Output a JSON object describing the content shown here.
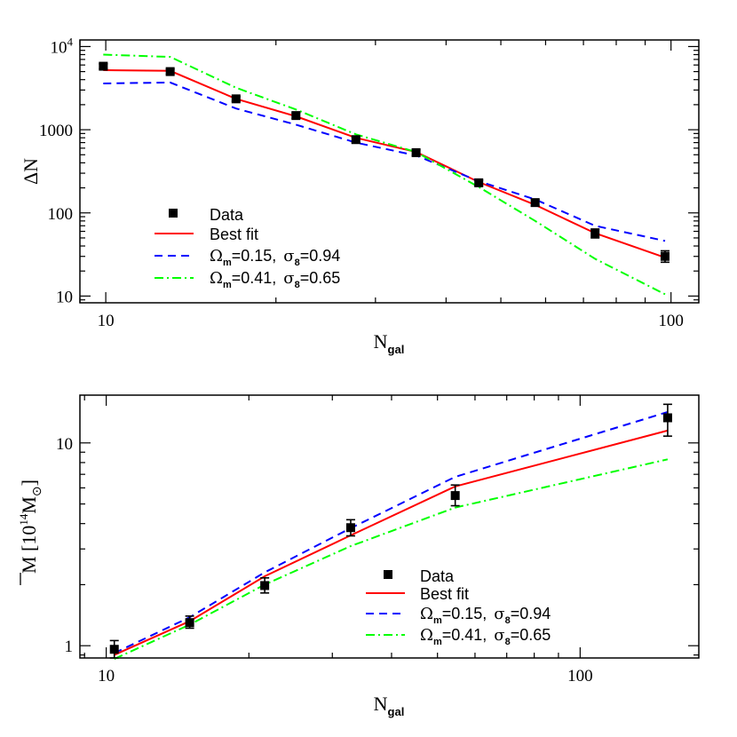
{
  "chart_data": [
    {
      "type": "line",
      "xscale": "log",
      "yscale": "log",
      "xlim": [
        9.0,
        112
      ],
      "ylim": [
        8.3,
        12000
      ],
      "xlabel": "N",
      "xlabel_sub": "gal",
      "ylabel": "ΔN",
      "xticks": [
        {
          "value": 10,
          "label": "10"
        },
        {
          "value": 100,
          "label": "100"
        }
      ],
      "yticks": [
        {
          "value": 10,
          "label": "10"
        },
        {
          "value": 100,
          "label": "100"
        },
        {
          "value": 1000,
          "label": "1000"
        },
        {
          "value": 10000,
          "label": "10",
          "sup": "4"
        }
      ],
      "grid": false,
      "legend_position": "bottom-left",
      "data": {
        "name": "Data",
        "color": "#000000",
        "points": [
          {
            "x": 9.9,
            "y": 5800,
            "ylo": 5400,
            "yhi": 6200
          },
          {
            "x": 13.0,
            "y": 5000,
            "ylo": 4650,
            "yhi": 5350
          },
          {
            "x": 17.0,
            "y": 2350,
            "ylo": 2200,
            "yhi": 2500
          },
          {
            "x": 21.7,
            "y": 1480,
            "ylo": 1370,
            "yhi": 1590
          },
          {
            "x": 27.7,
            "y": 760,
            "ylo": 700,
            "yhi": 820
          },
          {
            "x": 35.4,
            "y": 530,
            "ylo": 490,
            "yhi": 570
          },
          {
            "x": 45.7,
            "y": 230,
            "ylo": 212,
            "yhi": 248
          },
          {
            "x": 57.5,
            "y": 133,
            "ylo": 121,
            "yhi": 145
          },
          {
            "x": 73.4,
            "y": 57,
            "ylo": 50,
            "yhi": 64
          },
          {
            "x": 97.6,
            "y": 30,
            "ylo": 25.5,
            "yhi": 35
          }
        ]
      },
      "series": [
        {
          "name": "Best fit",
          "color": "#ff0000",
          "dash": "solid",
          "x": [
            9.9,
            13.0,
            17.0,
            21.7,
            27.7,
            35.4,
            45.7,
            57.5,
            73.4,
            97.6
          ],
          "y": [
            5200,
            5100,
            2350,
            1450,
            800,
            540,
            235,
            125,
            57,
            29
          ]
        },
        {
          "name": "Ω_m=0.15, σ_8=0.94",
          "color": "#0000ff",
          "dash": "dashed",
          "x": [
            9.9,
            13.0,
            17.0,
            21.7,
            27.7,
            35.4,
            45.7,
            57.5,
            73.4,
            97.6
          ],
          "y": [
            3600,
            3700,
            1800,
            1150,
            700,
            490,
            240,
            145,
            70,
            46
          ]
        },
        {
          "name": "Ω_m=0.41, σ_8=0.65",
          "color": "#00ff00",
          "dash": "dashdot",
          "x": [
            9.9,
            13.0,
            17.0,
            21.7,
            27.7,
            35.4,
            45.7,
            57.5,
            73.4,
            97.6
          ],
          "y": [
            8000,
            7500,
            3200,
            1750,
            880,
            540,
            205,
            80,
            28,
            10.5
          ]
        }
      ],
      "legend_entries": [
        {
          "key": "data",
          "text": "Data"
        },
        {
          "key": "best",
          "text": "Best fit"
        },
        {
          "key": "low",
          "omega_label": "Ω",
          "omega_sub": "m",
          "omega_value": "=0.15,",
          "sigma_label": "σ",
          "sigma_sub": "8",
          "sigma_value": "=0.94"
        },
        {
          "key": "high",
          "omega_label": "Ω",
          "omega_sub": "m",
          "omega_value": "=0.41,",
          "sigma_label": "σ",
          "sigma_sub": "8",
          "sigma_value": "=0.65"
        }
      ]
    },
    {
      "type": "line",
      "xscale": "log",
      "yscale": "log",
      "xlim": [
        8.8,
        178
      ],
      "ylim": [
        0.87,
        17.2
      ],
      "xlabel": "N",
      "xlabel_sub": "gal",
      "ylabel": "M [10",
      "ylabel_sup": "14",
      "ylabel_tail": "M",
      "ylabel_sub": "⊙",
      "ylabel_close": "]",
      "xticks": [
        {
          "value": 10,
          "label": "10"
        },
        {
          "value": 100,
          "label": "100"
        }
      ],
      "yticks": [
        {
          "value": 1,
          "label": "1"
        },
        {
          "value": 10,
          "label": "10"
        }
      ],
      "grid": false,
      "legend_position": "bottom-center",
      "data": {
        "name": "Data",
        "color": "#000000",
        "points": [
          {
            "x": 10.4,
            "y": 0.96,
            "ylo": 0.87,
            "yhi": 1.06
          },
          {
            "x": 15.0,
            "y": 1.3,
            "ylo": 1.22,
            "yhi": 1.4
          },
          {
            "x": 21.6,
            "y": 1.98,
            "ylo": 1.82,
            "yhi": 2.16
          },
          {
            "x": 32.8,
            "y": 3.82,
            "ylo": 3.48,
            "yhi": 4.18
          },
          {
            "x": 54.5,
            "y": 5.5,
            "ylo": 4.9,
            "yhi": 6.2
          },
          {
            "x": 153,
            "y": 13.3,
            "ylo": 10.8,
            "yhi": 15.5
          }
        ]
      },
      "series": [
        {
          "name": "Best fit",
          "color": "#ff0000",
          "dash": "solid",
          "x": [
            10.4,
            15.0,
            21.6,
            32.8,
            54.5,
            153
          ],
          "y": [
            0.9,
            1.32,
            2.2,
            3.5,
            6.1,
            11.5
          ]
        },
        {
          "name": "Ω_m=0.15, σ_8=0.94",
          "color": "#0000ff",
          "dash": "dashed",
          "x": [
            10.4,
            15.0,
            21.6,
            32.8,
            54.5,
            153
          ],
          "y": [
            0.92,
            1.38,
            2.3,
            3.8,
            6.8,
            14.2
          ]
        },
        {
          "name": "Ω_m=0.41, σ_8=0.65",
          "color": "#00ff00",
          "dash": "dashdot",
          "x": [
            10.4,
            15.0,
            21.6,
            32.8,
            54.5,
            153
          ],
          "y": [
            0.86,
            1.27,
            2.0,
            3.1,
            4.8,
            8.3
          ]
        }
      ],
      "legend_entries": [
        {
          "key": "data",
          "text": "Data"
        },
        {
          "key": "best",
          "text": "Best fit"
        },
        {
          "key": "low",
          "omega_label": "Ω",
          "omega_sub": "m",
          "omega_value": "=0.15,",
          "sigma_label": "σ",
          "sigma_sub": "8",
          "sigma_value": "=0.94"
        },
        {
          "key": "high",
          "omega_label": "Ω",
          "omega_sub": "m",
          "omega_value": "=0.41,",
          "sigma_label": "σ",
          "sigma_sub": "8",
          "sigma_value": "=0.65"
        }
      ]
    }
  ]
}
